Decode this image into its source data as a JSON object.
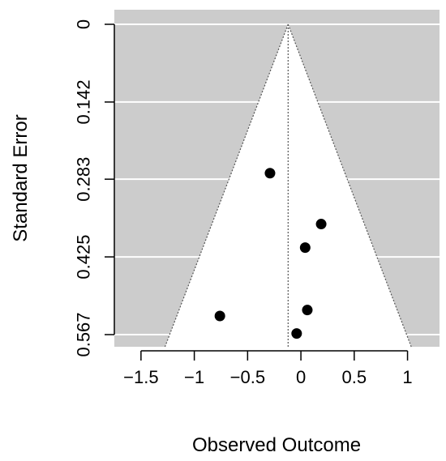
{
  "chart_data": {
    "type": "scatter",
    "title": "",
    "xlabel": "Observed Outcome",
    "ylabel": "Standard Error",
    "xlim": [
      -1.75,
      1.3
    ],
    "ylim": [
      0.567,
      0
    ],
    "y_reversed": true,
    "xticks": [
      -1.5,
      -1,
      -0.5,
      0,
      0.5,
      1
    ],
    "xtick_labels": [
      "−1.5",
      "−1",
      "−0.5",
      "0",
      "0.5",
      "1"
    ],
    "yticks": [
      0,
      0.142,
      0.283,
      0.425,
      0.567
    ],
    "ytick_labels": [
      "0",
      "0.142",
      "0.283",
      "0.425",
      "0.567"
    ],
    "grid": true,
    "funnel": {
      "center": -0.12,
      "critical_value": 1.96
    },
    "points": [
      {
        "x": -0.29,
        "y": 0.272
      },
      {
        "x": 0.19,
        "y": 0.365
      },
      {
        "x": 0.04,
        "y": 0.408
      },
      {
        "x": 0.06,
        "y": 0.522
      },
      {
        "x": -0.76,
        "y": 0.533
      },
      {
        "x": -0.04,
        "y": 0.565
      }
    ],
    "colors": {
      "background": "#cccccc",
      "funnel": "#ffffff",
      "gridline": "#ffffff",
      "point": "#000000",
      "axis": "#000000"
    }
  }
}
